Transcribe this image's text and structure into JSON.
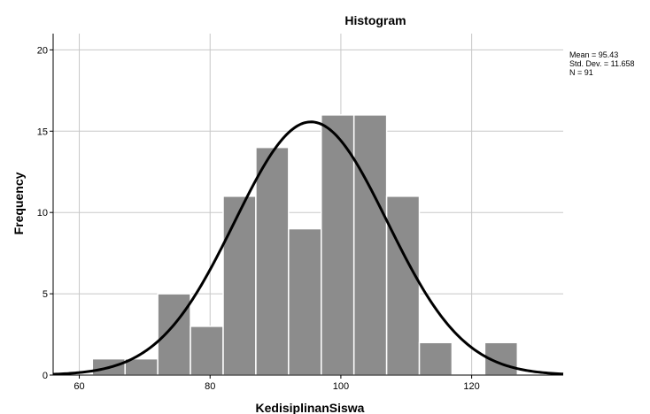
{
  "chart_data": {
    "type": "bar",
    "title": "Histogram",
    "xlabel": "KedisiplinanSiswa",
    "ylabel": "Frequency",
    "xlim": [
      56,
      134
    ],
    "ylim": [
      0,
      21
    ],
    "x_ticks": [
      60,
      80,
      100,
      120
    ],
    "y_ticks": [
      0,
      5,
      10,
      15,
      20
    ],
    "bins": [
      {
        "x0": 62,
        "x1": 67,
        "value": 1
      },
      {
        "x0": 67,
        "x1": 72,
        "value": 1
      },
      {
        "x0": 72,
        "x1": 77,
        "value": 5
      },
      {
        "x0": 77,
        "x1": 82,
        "value": 3
      },
      {
        "x0": 82,
        "x1": 87,
        "value": 11
      },
      {
        "x0": 87,
        "x1": 92,
        "value": 14
      },
      {
        "x0": 92,
        "x1": 97,
        "value": 9
      },
      {
        "x0": 97,
        "x1": 102,
        "value": 16
      },
      {
        "x0": 102,
        "x1": 107,
        "value": 16
      },
      {
        "x0": 107,
        "x1": 112,
        "value": 11
      },
      {
        "x0": 112,
        "x1": 117,
        "value": 2
      },
      {
        "x0": 117,
        "x1": 122,
        "value": 0
      },
      {
        "x0": 122,
        "x1": 127,
        "value": 2
      }
    ],
    "normal_curve": {
      "mean": 95.43,
      "std": 11.658,
      "n": 91
    },
    "grid": true,
    "bar_color": "#8c8c8c",
    "bar_edge_color": "#ffffff",
    "curve_color": "#000000",
    "grid_color": "#c8c8c8",
    "stats_text": [
      "Mean = 95.43",
      "Std. Dev. = 11.658",
      "N = 91"
    ],
    "legend_position": "top-right"
  }
}
